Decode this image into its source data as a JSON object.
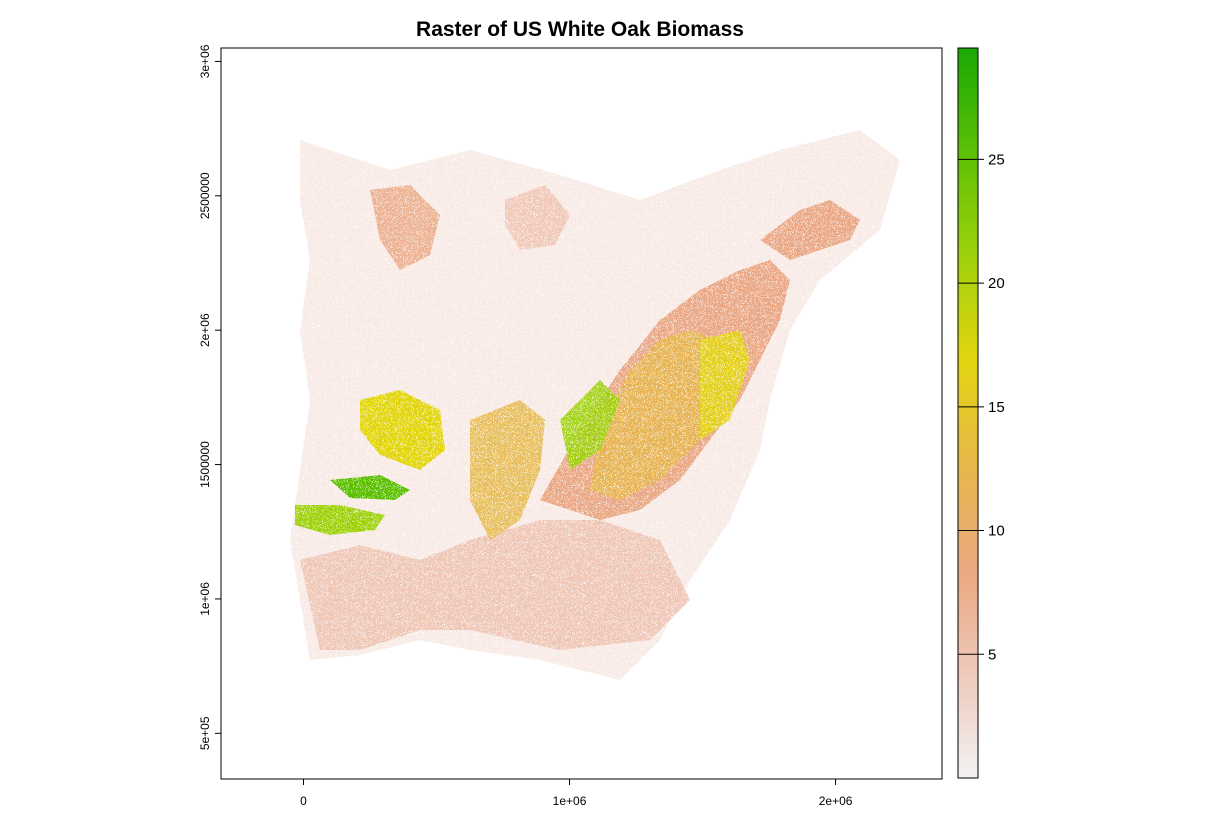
{
  "chart_data": {
    "type": "heatmap",
    "title": "Raster of US White Oak Biomass",
    "xlabel": "",
    "ylabel": "",
    "xlim": [
      -310000,
      2400000
    ],
    "ylim": [
      330000,
      3050000
    ],
    "x_ticks": [
      {
        "value": 0,
        "label": "0"
      },
      {
        "value": 1000000,
        "label": "1e+06"
      },
      {
        "value": 2000000,
        "label": "2e+06"
      }
    ],
    "y_ticks": [
      {
        "value": 500000,
        "label": "5e+05"
      },
      {
        "value": 1000000,
        "label": "1e+06"
      },
      {
        "value": 1500000,
        "label": "1500000"
      },
      {
        "value": 2000000,
        "label": "2e+06"
      },
      {
        "value": 2500000,
        "label": "2500000"
      },
      {
        "value": 3000000,
        "label": "3e+06"
      }
    ],
    "colorbar": {
      "range": [
        0,
        29.5
      ],
      "ticks": [
        {
          "value": 5,
          "label": "5"
        },
        {
          "value": 10,
          "label": "10"
        },
        {
          "value": 15,
          "label": "15"
        },
        {
          "value": 20,
          "label": "20"
        },
        {
          "value": 25,
          "label": "25"
        }
      ],
      "colors": [
        "#f2f2f2",
        "#eec9bb",
        "#eba880",
        "#e6b84a",
        "#e3d511",
        "#9fd10b",
        "#5cc006",
        "#1aa905"
      ]
    },
    "grid": false,
    "legend": "right"
  }
}
